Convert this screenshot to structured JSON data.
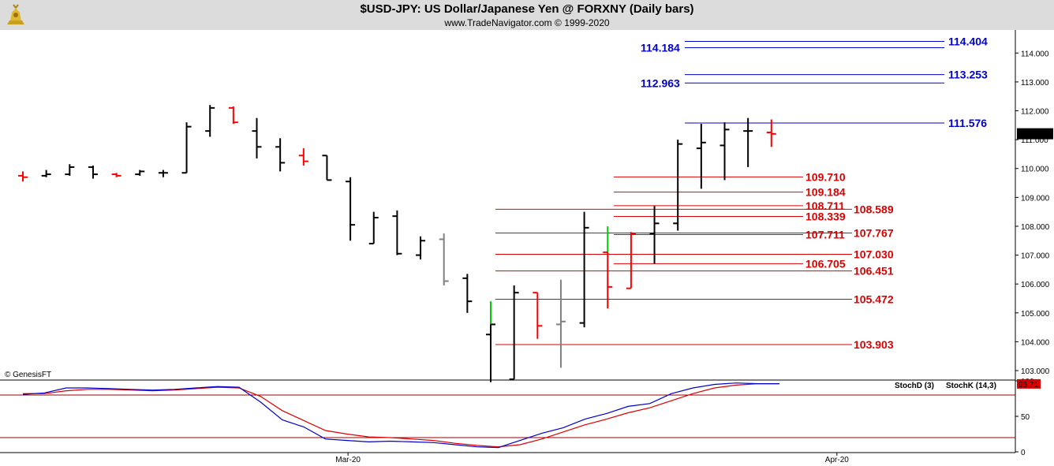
{
  "header": {
    "title": "$USD-JPY:  US Dollar/Japanese Yen @ FORXNY  (Daily bars)",
    "subtitle": "www.TradeNavigator.com © 1999-2020",
    "logo_icon": "gold-bull-logo-icon"
  },
  "copyright": "© GenesisFT",
  "colors": {
    "up_bar": "#000000",
    "down_bar": "#ff0000",
    "gray_bar": "#808080",
    "green_bar": "#00cc00",
    "blue_level": "#0000cc",
    "red_level": "#dd0000",
    "stoch_d": "#dd0000",
    "stoch_k": "#0000cc"
  },
  "chart_data": [
    {
      "type": "ohlc",
      "ylim": [
        102.7,
        114.8
      ],
      "y_ticks": [
        "103.000",
        "104.000",
        "105.000",
        "106.000",
        "107.000",
        "108.000",
        "109.000",
        "110.000",
        "111.000",
        "112.000",
        "113.000",
        "114.000"
      ],
      "x_labels": [
        {
          "label": "Mar-20",
          "index": 13.9
        },
        {
          "label": "Apr-20",
          "index": 34.8
        }
      ],
      "last_price": "111.205",
      "bars": [
        {
          "o": 109.75,
          "h": 109.9,
          "l": 109.55,
          "c": 109.7,
          "color": "down"
        },
        {
          "o": 109.75,
          "h": 109.95,
          "l": 109.7,
          "c": 109.8,
          "color": "up"
        },
        {
          "o": 109.8,
          "h": 110.15,
          "l": 109.75,
          "c": 110.05,
          "color": "up"
        },
        {
          "o": 110.05,
          "h": 110.1,
          "l": 109.65,
          "c": 109.8,
          "color": "up"
        },
        {
          "o": 109.8,
          "h": 109.85,
          "l": 109.7,
          "c": 109.75,
          "color": "down"
        },
        {
          "o": 109.8,
          "h": 109.95,
          "l": 109.75,
          "c": 109.9,
          "color": "up"
        },
        {
          "o": 109.85,
          "h": 109.95,
          "l": 109.7,
          "c": 109.85,
          "color": "up"
        },
        {
          "o": 109.85,
          "h": 111.6,
          "l": 109.85,
          "c": 111.45,
          "color": "up"
        },
        {
          "o": 111.3,
          "h": 112.2,
          "l": 111.1,
          "c": 112.1,
          "color": "up"
        },
        {
          "o": 112.1,
          "h": 112.15,
          "l": 111.55,
          "c": 111.6,
          "color": "down"
        },
        {
          "o": 111.3,
          "h": 111.75,
          "l": 110.35,
          "c": 110.75,
          "color": "up"
        },
        {
          "o": 110.75,
          "h": 111.05,
          "l": 109.9,
          "c": 110.2,
          "color": "up"
        },
        {
          "o": 110.45,
          "h": 110.7,
          "l": 110.1,
          "c": 110.25,
          "color": "down"
        },
        {
          "o": 110.45,
          "h": 110.45,
          "l": 109.6,
          "c": 109.6,
          "color": "up"
        },
        {
          "o": 109.55,
          "h": 109.7,
          "l": 107.5,
          "c": 108.05,
          "color": "up"
        },
        {
          "o": 107.4,
          "h": 108.5,
          "l": 107.4,
          "c": 108.3,
          "color": "up"
        },
        {
          "o": 108.35,
          "h": 108.55,
          "l": 107.0,
          "c": 107.05,
          "color": "up"
        },
        {
          "o": 107.0,
          "h": 107.65,
          "l": 106.85,
          "c": 107.5,
          "color": "up"
        },
        {
          "o": 107.55,
          "h": 107.75,
          "l": 105.95,
          "c": 106.1,
          "color": "gray"
        },
        {
          "o": 106.2,
          "h": 106.35,
          "l": 105.0,
          "c": 105.4,
          "color": "up"
        },
        {
          "o": 104.25,
          "h": 105.4,
          "l": 102.6,
          "c": 104.6,
          "color": "green"
        },
        {
          "o": 102.7,
          "h": 105.95,
          "l": 102.7,
          "c": 105.7,
          "color": "up"
        },
        {
          "o": 105.7,
          "h": 105.7,
          "l": 104.1,
          "c": 104.55,
          "color": "down"
        },
        {
          "o": 104.6,
          "h": 106.15,
          "l": 103.1,
          "c": 104.7,
          "color": "gray"
        },
        {
          "o": 104.65,
          "h": 108.5,
          "l": 104.5,
          "c": 107.95,
          "color": "up"
        },
        {
          "o": 107.1,
          "h": 108.0,
          "l": 105.15,
          "c": 105.9,
          "color": "green"
        },
        {
          "o": 105.85,
          "h": 107.8,
          "l": 105.85,
          "c": 107.75,
          "color": "down"
        },
        {
          "o": 107.75,
          "h": 108.7,
          "l": 106.7,
          "c": 108.1,
          "color": "up"
        },
        {
          "o": 108.1,
          "h": 111.0,
          "l": 107.85,
          "c": 110.85,
          "color": "up"
        },
        {
          "o": 110.7,
          "h": 111.55,
          "l": 109.3,
          "c": 110.9,
          "color": "up"
        },
        {
          "o": 110.8,
          "h": 111.6,
          "l": 109.6,
          "c": 111.35,
          "color": "up"
        },
        {
          "o": 111.3,
          "h": 111.75,
          "l": 110.05,
          "c": 111.3,
          "color": "up"
        },
        {
          "o": 111.25,
          "h": 111.7,
          "l": 110.75,
          "c": 111.2,
          "color": "down"
        }
      ],
      "levels": [
        {
          "value": 114.404,
          "label": "114.404",
          "color": "blue",
          "label_side": "right"
        },
        {
          "value": 114.184,
          "label": "114.184",
          "color": "blue",
          "label_side": "left"
        },
        {
          "value": 113.253,
          "label": "113.253",
          "color": "blue",
          "label_side": "right"
        },
        {
          "value": 112.963,
          "label": "112.963",
          "color": "blue",
          "label_side": "left"
        },
        {
          "value": 111.576,
          "label": "111.576",
          "color": "blue",
          "label_side": "right"
        },
        {
          "value": 109.71,
          "label": "109.710",
          "color": "red",
          "label_side": "left"
        },
        {
          "value": 109.184,
          "label": "109.184",
          "color": "red",
          "label_side": "left"
        },
        {
          "value": 108.711,
          "label": "108.711",
          "color": "red",
          "label_side": "left"
        },
        {
          "value": 108.589,
          "label": "108.589",
          "color": "red",
          "label_side": "right"
        },
        {
          "value": 108.339,
          "label": "108.339",
          "color": "red",
          "label_side": "left"
        },
        {
          "value": 107.767,
          "label": "107.767",
          "color": "red",
          "label_side": "right"
        },
        {
          "value": 107.711,
          "label": "107.711",
          "color": "red",
          "label_side": "left"
        },
        {
          "value": 107.03,
          "label": "107.030",
          "color": "red",
          "label_side": "right"
        },
        {
          "value": 106.705,
          "label": "106.705",
          "color": "red",
          "label_side": "left"
        },
        {
          "value": 106.451,
          "label": "106.451",
          "color": "red",
          "label_side": "right"
        },
        {
          "value": 105.472,
          "label": "105.472",
          "color": "red",
          "label_side": "right"
        },
        {
          "value": 103.903,
          "label": "103.903",
          "color": "red",
          "label_side": "right"
        }
      ]
    },
    {
      "type": "line",
      "ylim": [
        0,
        100
      ],
      "y_ticks": [
        "0",
        "50",
        "100"
      ],
      "hlines": [
        20,
        80
      ],
      "last_value": "95.71",
      "series": [
        {
          "name": "StochD (3)",
          "color": "red",
          "values": [
            82,
            82,
            86,
            88,
            88,
            87,
            86,
            87,
            89,
            91,
            90,
            78,
            58,
            44,
            30,
            25,
            21,
            20,
            18,
            16,
            12,
            9,
            7,
            10,
            18,
            28,
            38,
            46,
            55,
            62,
            72,
            82,
            90,
            94,
            96,
            96
          ]
        },
        {
          "name": "StochK (14,3)",
          "color": "blue",
          "values": [
            81,
            83,
            90,
            90,
            89,
            88,
            87,
            88,
            90,
            92,
            91,
            70,
            45,
            35,
            18,
            16,
            14,
            15,
            14,
            13,
            10,
            7,
            6,
            16,
            26,
            34,
            46,
            54,
            64,
            68,
            82,
            90,
            95,
            97,
            96,
            96
          ]
        }
      ]
    }
  ]
}
